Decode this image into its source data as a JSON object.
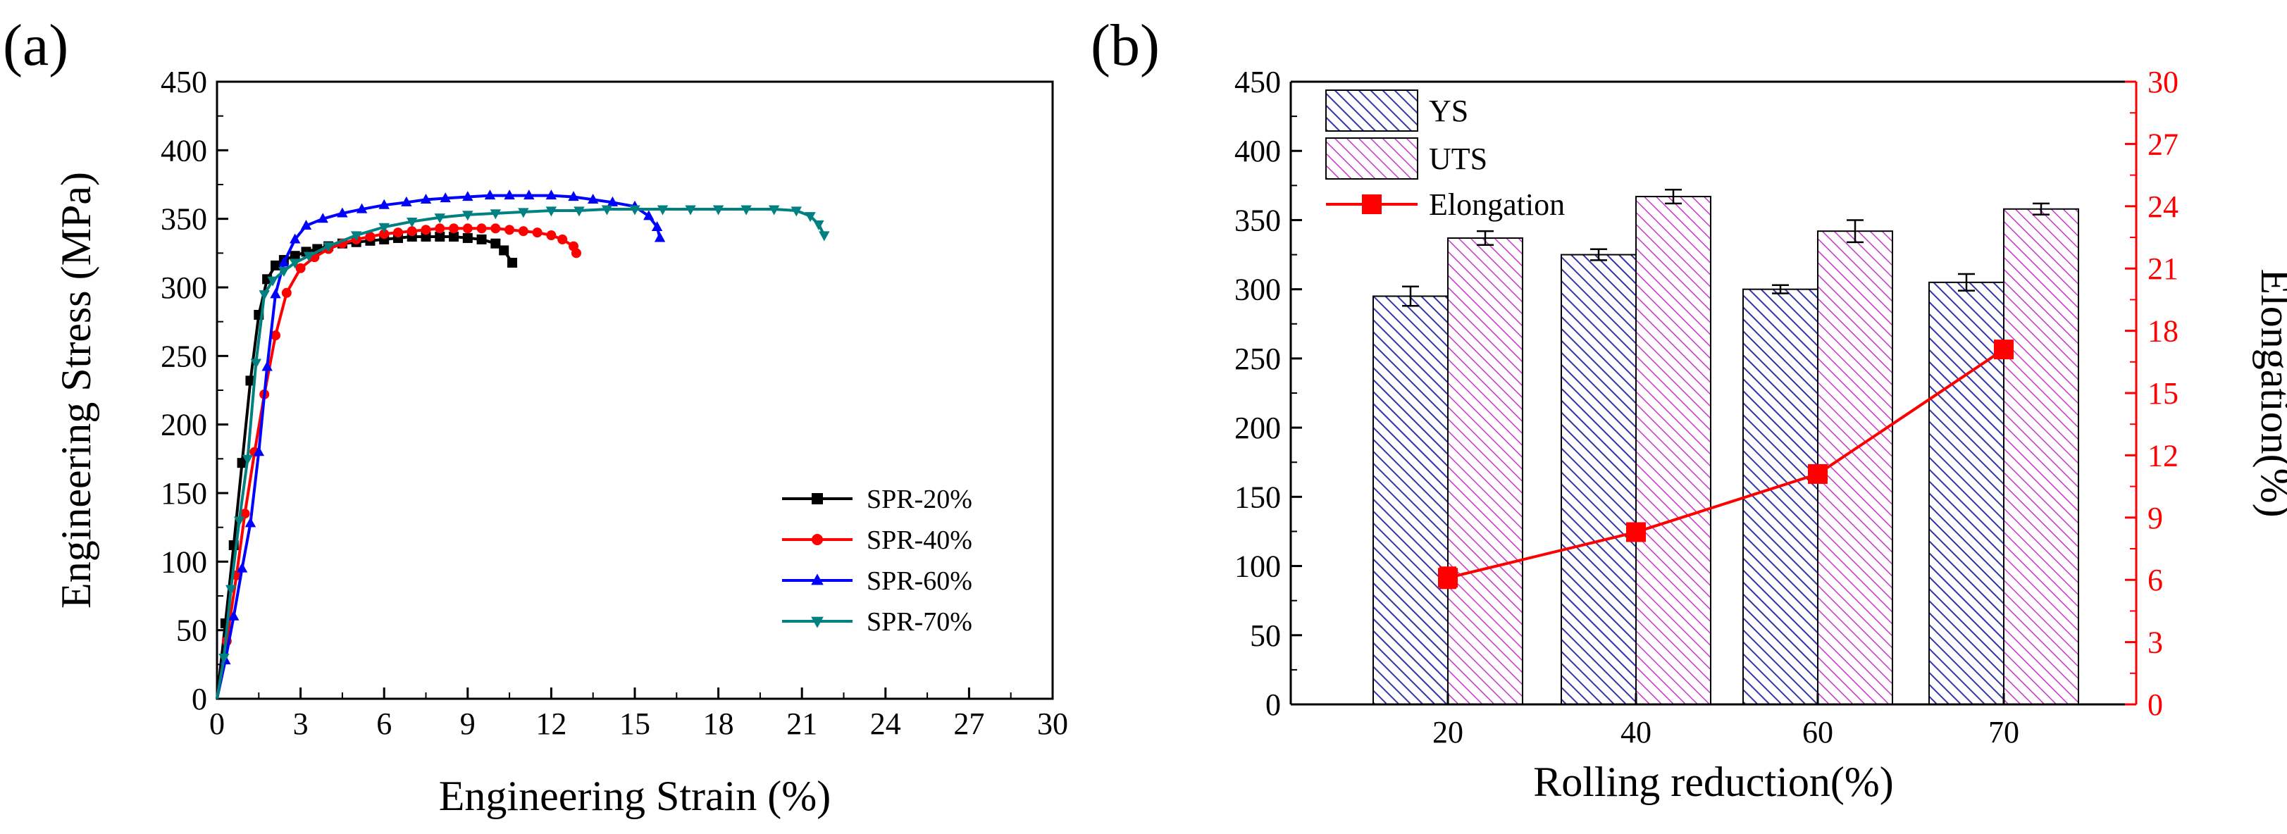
{
  "panels": {
    "a_label": "(a)",
    "b_label": "(b)"
  },
  "chart_data": [
    {
      "type": "line",
      "xlabel": "Engineering Strain (%)",
      "ylabel": "Engineering Stress (MPa)",
      "xlim": [
        0,
        30
      ],
      "ylim": [
        0,
        450
      ],
      "xticks": [
        0,
        3,
        6,
        9,
        12,
        15,
        18,
        21,
        24,
        27,
        30
      ],
      "yticks": [
        0,
        50,
        100,
        150,
        200,
        250,
        300,
        350,
        400,
        450
      ],
      "legend": "bottom-right",
      "grid": false,
      "series": [
        {
          "name": "SPR-20%",
          "color": "#000000",
          "marker": "square",
          "x": [
            0,
            0.3,
            0.6,
            0.9,
            1.2,
            1.5,
            1.8,
            2.1,
            2.4,
            2.8,
            3.2,
            3.6,
            4.0,
            4.5,
            5.0,
            5.5,
            6.0,
            6.5,
            7.0,
            7.5,
            8.0,
            8.5,
            9.0,
            9.5,
            10.0,
            10.3,
            10.6
          ],
          "y": [
            0,
            55,
            112,
            172,
            232,
            280,
            306,
            316,
            320,
            323,
            326,
            328,
            330,
            332,
            333,
            334,
            335,
            336,
            337,
            337,
            337,
            337,
            336,
            335,
            332,
            327,
            318
          ]
        },
        {
          "name": "SPR-40%",
          "color": "#ff0000",
          "marker": "circle",
          "x": [
            0,
            0.35,
            0.7,
            1.0,
            1.35,
            1.7,
            2.1,
            2.5,
            3.0,
            3.5,
            4.0,
            4.5,
            5.0,
            5.5,
            6.0,
            6.5,
            7.0,
            7.5,
            8.0,
            8.5,
            9.0,
            9.5,
            10.0,
            10.5,
            11.0,
            11.5,
            12.0,
            12.4,
            12.8,
            12.9
          ],
          "y": [
            0,
            42,
            90,
            135,
            180,
            222,
            265,
            296,
            314,
            322,
            328,
            332,
            335,
            337,
            339,
            340,
            341,
            342,
            343,
            343,
            343,
            343,
            343,
            342,
            341,
            340,
            338,
            335,
            330,
            325
          ]
        },
        {
          "name": "SPR-60%",
          "color": "#0000ff",
          "marker": "triangle-up",
          "x": [
            0,
            0.3,
            0.6,
            0.9,
            1.2,
            1.5,
            1.8,
            2.1,
            2.4,
            2.8,
            3.2,
            3.8,
            4.5,
            5.2,
            6.0,
            6.8,
            7.5,
            8.2,
            9.0,
            9.8,
            10.5,
            11.2,
            12.0,
            12.8,
            13.5,
            14.2,
            15.0,
            15.5,
            15.8,
            15.9
          ],
          "y": [
            0,
            28,
            60,
            95,
            128,
            180,
            242,
            295,
            318,
            335,
            345,
            350,
            354,
            357,
            360,
            362,
            364,
            365,
            366,
            367,
            367,
            367,
            367,
            366,
            364,
            362,
            359,
            352,
            344,
            336
          ]
        },
        {
          "name": "SPR-70%",
          "color": "#008080",
          "marker": "triangle-down",
          "x": [
            0,
            0.25,
            0.5,
            0.8,
            1.1,
            1.4,
            1.7,
            2.0,
            2.4,
            2.8,
            3.3,
            4.0,
            5.0,
            6.0,
            7.0,
            8.0,
            9.0,
            10.0,
            11.0,
            12.0,
            13.0,
            14.0,
            15.0,
            16.0,
            17.0,
            18.0,
            19.0,
            20.0,
            20.8,
            21.3,
            21.6,
            21.8
          ],
          "y": [
            0,
            30,
            80,
            130,
            175,
            245,
            295,
            305,
            312,
            318,
            323,
            330,
            338,
            344,
            348,
            351,
            353,
            354,
            355,
            356,
            356,
            357,
            357,
            357,
            357,
            357,
            357,
            357,
            356,
            352,
            346,
            338
          ]
        }
      ]
    },
    {
      "type": "bar",
      "xlabel": "Rolling reduction(%)",
      "ylabel": "",
      "y2label": "Elongation(%)",
      "categories": [
        "20",
        "40",
        "60",
        "70"
      ],
      "ylim": [
        0,
        450
      ],
      "y2lim": [
        0,
        30
      ],
      "yticks": [
        0,
        50,
        100,
        150,
        200,
        250,
        300,
        350,
        400,
        450
      ],
      "y2ticks": [
        0,
        3,
        6,
        9,
        12,
        15,
        18,
        21,
        24,
        27,
        30
      ],
      "legend": "top-left",
      "grid": false,
      "series": [
        {
          "name": "YS",
          "color": "#3333aa",
          "hatch": "diagonal",
          "values": [
            295,
            325,
            300,
            305
          ],
          "errors": [
            7,
            4,
            3,
            6
          ]
        },
        {
          "name": "UTS",
          "color": "#cc33cc",
          "hatch": "diagonal",
          "values": [
            337,
            367,
            342,
            358
          ],
          "errors": [
            5,
            5,
            8,
            4
          ]
        },
        {
          "name": "Elongation",
          "color": "#ff0000",
          "marker": "square",
          "axis": "right",
          "values": [
            6.1,
            8.3,
            11.1,
            17.1
          ],
          "errors": [
            0.5,
            0.4,
            0.4,
            0.4
          ]
        }
      ]
    }
  ]
}
